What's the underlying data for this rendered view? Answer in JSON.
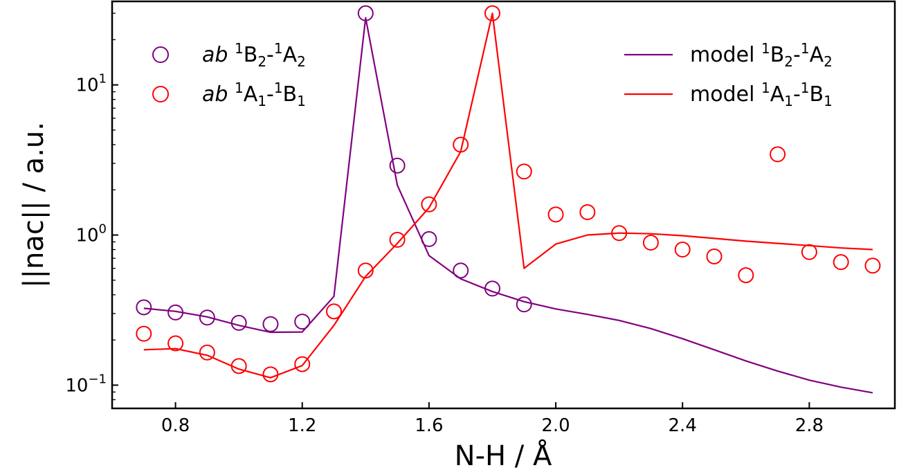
{
  "chart_data": {
    "type": "line",
    "xlabel": "N-H / Å",
    "ylabel": "||nac|| / a.u.",
    "xlim": [
      0.6,
      3.07
    ],
    "ylim": [
      0.07,
      36
    ],
    "yscale": "log",
    "grid": false,
    "x_ticks": [
      0.8,
      1.2,
      1.6,
      2.0,
      2.4,
      2.8
    ],
    "x_tick_labels": [
      "0.8",
      "1.2",
      "1.6",
      "2.0",
      "2.4",
      "2.8"
    ],
    "y_ticks": [
      {
        "value": 0.1,
        "base": "10",
        "exp": "−1"
      },
      {
        "value": 1,
        "base": "10",
        "exp": "0"
      },
      {
        "value": 10,
        "base": "10",
        "exp": "1"
      }
    ],
    "legend_left_placement": "top-left",
    "legend_right_placement": "top-right",
    "series": [
      {
        "name": "ab 1B2-1A2",
        "kind": "markers",
        "color": "#800080",
        "legend": {
          "prefix": "ab",
          "sup1": "1",
          "main1": "B",
          "sub1": "2",
          "dash": "-",
          "sup2": "1",
          "main2": "A",
          "sub2": "2"
        },
        "x": [
          0.7,
          0.8,
          0.9,
          1.0,
          1.1,
          1.2,
          1.4,
          1.5,
          1.6,
          1.7,
          1.8,
          1.9
        ],
        "y": [
          0.33,
          0.305,
          0.282,
          0.26,
          0.255,
          0.265,
          30,
          2.9,
          0.94,
          0.58,
          0.44,
          0.345
        ]
      },
      {
        "name": "ab 1A1-1B1",
        "kind": "markers",
        "color": "#ff0000",
        "legend": {
          "prefix": "ab",
          "sup1": "1",
          "main1": "A",
          "sub1": "1",
          "dash": "-",
          "sup2": "1",
          "main2": "B",
          "sub2": "1"
        },
        "x": [
          0.7,
          0.8,
          0.9,
          1.0,
          1.1,
          1.2,
          1.3,
          1.4,
          1.5,
          1.6,
          1.7,
          1.8,
          1.9,
          2.0,
          2.1,
          2.2,
          2.3,
          2.4,
          2.5,
          2.6,
          2.7,
          2.8,
          2.9,
          3.0
        ],
        "y": [
          0.22,
          0.19,
          0.165,
          0.134,
          0.118,
          0.138,
          0.31,
          0.58,
          0.93,
          1.6,
          4.0,
          30,
          2.65,
          1.37,
          1.42,
          1.03,
          0.89,
          0.8,
          0.72,
          0.54,
          3.45,
          0.77,
          0.66,
          0.625
        ]
      },
      {
        "name": "model 1B2-1A2",
        "kind": "line",
        "color": "#800080",
        "legend": {
          "prefix": "model",
          "sup1": "1",
          "main1": "B",
          "sub1": "2",
          "dash": "-",
          "sup2": "1",
          "main2": "A",
          "sub2": "2"
        },
        "x": [
          0.7,
          0.8,
          0.9,
          1.0,
          1.1,
          1.2,
          1.3,
          1.4,
          1.5,
          1.6,
          1.7,
          1.8,
          1.9,
          2.0,
          2.1,
          2.2,
          2.3,
          2.4,
          2.5,
          2.6,
          2.7,
          2.8,
          2.9,
          3.0
        ],
        "y": [
          0.325,
          0.31,
          0.285,
          0.25,
          0.225,
          0.226,
          0.39,
          28,
          2.15,
          0.73,
          0.51,
          0.42,
          0.36,
          0.322,
          0.296,
          0.27,
          0.238,
          0.204,
          0.172,
          0.145,
          0.124,
          0.108,
          0.097,
          0.089
        ]
      },
      {
        "name": "model 1A1-1B1",
        "kind": "line",
        "color": "#ff0000",
        "legend": {
          "prefix": "model",
          "sup1": "1",
          "main1": "A",
          "sub1": "1",
          "dash": "-",
          "sup2": "1",
          "main2": "B",
          "sub2": "1"
        },
        "x": [
          0.7,
          0.8,
          0.9,
          1.0,
          1.1,
          1.2,
          1.3,
          1.4,
          1.5,
          1.6,
          1.7,
          1.8,
          1.9,
          2.0,
          2.1,
          2.2,
          2.3,
          2.4,
          2.5,
          2.6,
          2.7,
          2.8,
          2.9,
          3.0
        ],
        "y": [
          0.172,
          0.175,
          0.158,
          0.128,
          0.112,
          0.135,
          0.25,
          0.53,
          0.88,
          1.52,
          3.6,
          30,
          0.6,
          0.87,
          1.0,
          1.03,
          1.02,
          0.99,
          0.95,
          0.91,
          0.88,
          0.85,
          0.82,
          0.8
        ]
      }
    ]
  }
}
